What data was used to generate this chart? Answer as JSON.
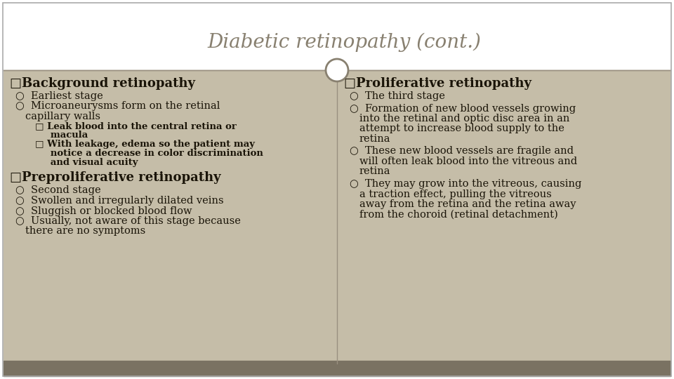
{
  "title": "Diabetic retinopathy (cont.)",
  "title_fontsize": 20,
  "title_color": "#888070",
  "bg_color_white": "#ffffff",
  "bg_color_tan": "#c5bda8",
  "footer_color": "#7a7262",
  "border_color": "#aaaaaa",
  "divider_color": "#999080",
  "circle_color": "#888070",
  "text_color": "#1a1408",
  "heading_fontsize": 13,
  "body_fontsize": 10.5,
  "sub_fontsize": 9.5,
  "left_col": {
    "heading1": "□Background retinopathy",
    "heading1_items": [
      [
        "Earliest stage"
      ],
      [
        "Microaneurysms form on the retinal",
        "capillary walls"
      ]
    ],
    "sub_items": [
      [
        "□ Leak blood into the central retina or",
        "   macula"
      ],
      [
        "□ With leakage, edema so the patient may",
        "   notice a decrease in color discrimination",
        "   and visual acuity"
      ]
    ],
    "heading2": "□Preproliferative retinopathy",
    "heading2_items": [
      [
        "Second stage"
      ],
      [
        "Swollen and irregularly dilated veins"
      ],
      [
        "Sluggish or blocked blood flow"
      ],
      [
        "Usually, not aware of this stage because",
        "there are no symptoms"
      ]
    ]
  },
  "right_col": {
    "heading1": "□Proliferative retinopathy",
    "heading1_items": [
      [
        "The third stage"
      ],
      [
        "Formation of new blood vessels growing",
        "into the retinal and optic disc area in an",
        "attempt to increase blood supply to the",
        "retina"
      ],
      [
        "These new blood vessels are fragile and",
        "will often leak blood into the vitreous and",
        "retina"
      ],
      [
        "They may grow into the vitreous, causing",
        "a traction effect, pulling the vitreous",
        "away from the retina and the retina away",
        "from the choroid (retinal detachment)"
      ]
    ]
  }
}
